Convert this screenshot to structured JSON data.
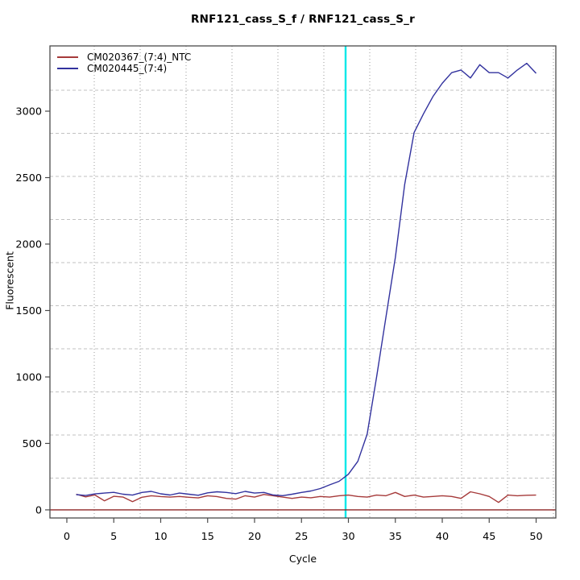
{
  "title": "RNF121_cass_S_f / RNF121_cass_S_r",
  "chart_data": {
    "type": "line",
    "title": "RNF121_cass_S_f / RNF121_cass_S_r",
    "xlabel": "Cycle",
    "ylabel": "Fluorescent",
    "xlim": [
      -1.8,
      52.1
    ],
    "ylim": [
      -61,
      3491
    ],
    "xticks": [
      0,
      5,
      10,
      15,
      20,
      25,
      30,
      35,
      40,
      45,
      50
    ],
    "yticks": [
      0,
      500,
      1000,
      1500,
      2000,
      2500,
      3000
    ],
    "grid": "on",
    "legend_position": "top-left",
    "threshold_line": {
      "y": 0,
      "color": "#8e2626"
    },
    "marker_line": {
      "x": 29.7,
      "color": "#00e8e8"
    },
    "x": [
      1,
      2,
      3,
      4,
      5,
      6,
      7,
      8,
      9,
      10,
      11,
      12,
      13,
      14,
      15,
      16,
      17,
      18,
      19,
      20,
      21,
      22,
      23,
      24,
      25,
      26,
      27,
      28,
      29,
      30,
      31,
      32,
      33,
      34,
      35,
      36,
      37,
      38,
      39,
      40,
      41,
      42,
      43,
      44,
      45,
      46,
      47,
      48,
      49,
      50
    ],
    "series": [
      {
        "name": "CM020367_(7:4)_NTC",
        "color": "#a63a3a",
        "values": [
          118,
          98,
          112,
          68,
          102,
          96,
          62,
          95,
          106,
          100,
          96,
          101,
          95,
          90,
          106,
          100,
          86,
          81,
          106,
          96,
          116,
          106,
          96,
          86,
          96,
          91,
          101,
          96,
          106,
          111,
          101,
          96,
          111,
          106,
          131,
          101,
          111,
          96,
          101,
          106,
          101,
          86,
          136,
          121,
          101,
          56,
          111,
          106,
          110,
          111
        ]
      },
      {
        "name": "CM020445_(7:4)",
        "color": "#32329e",
        "values": [
          115,
          108,
          120,
          126,
          132,
          118,
          111,
          131,
          139,
          121,
          112,
          126,
          118,
          110,
          128,
          136,
          131,
          122,
          139,
          126,
          131,
          112,
          107,
          118,
          131,
          142,
          160,
          188,
          215,
          268,
          365,
          570,
          1000,
          1450,
          1900,
          2450,
          2840,
          2980,
          3110,
          3210,
          3290,
          3310,
          3250,
          3350,
          3290,
          3290,
          3250,
          3310,
          3360,
          3285
        ]
      }
    ],
    "grid_colors": {
      "h_dashed": "#c2c2c2",
      "v_dotted": "#9a9a9a"
    },
    "axis_color": "#4a4a4a"
  }
}
